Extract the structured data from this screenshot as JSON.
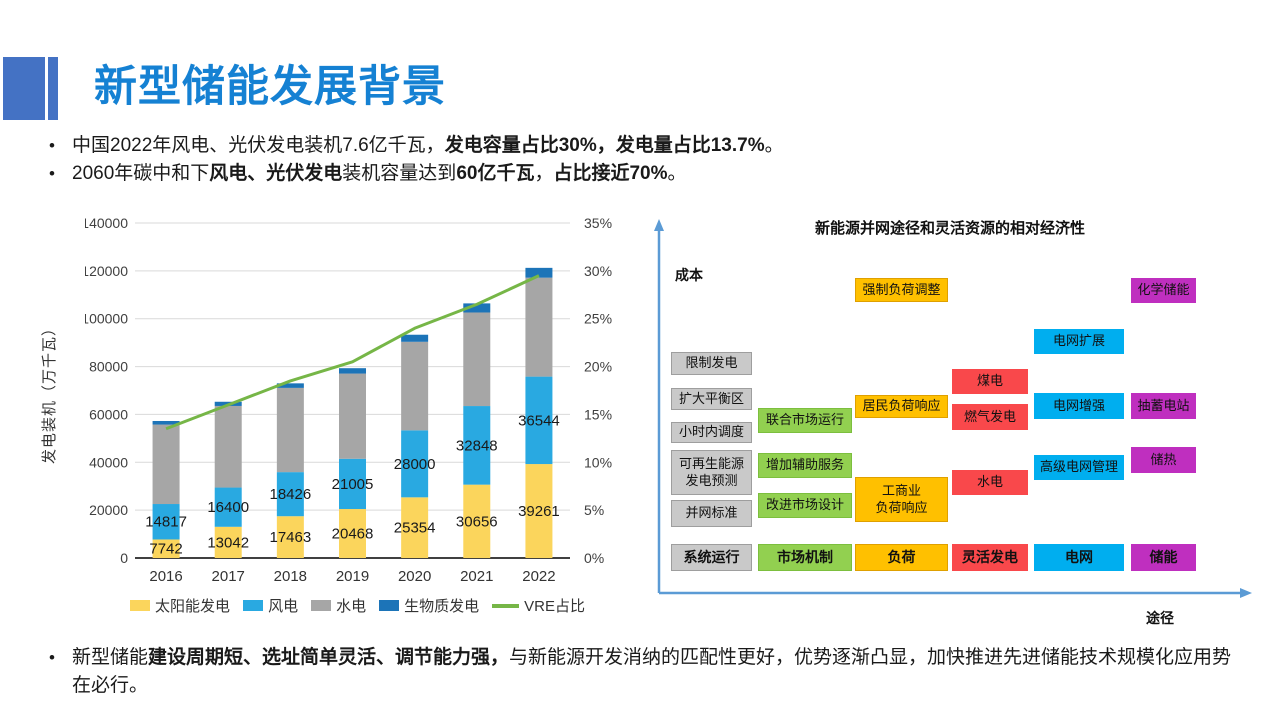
{
  "title": "新型储能发展背景",
  "bullets_top": [
    {
      "segments": [
        {
          "t": "中国2022年风电、光伏发电装机7.6亿千瓦，",
          "b": false
        },
        {
          "t": "发电容量占比30%，发电量占比13.7%",
          "b": true
        },
        {
          "t": "。",
          "b": false
        }
      ]
    },
    {
      "segments": [
        {
          "t": "2060年碳中和下",
          "b": false
        },
        {
          "t": "风电、光伏发电",
          "b": true
        },
        {
          "t": "装机容量达到",
          "b": false
        },
        {
          "t": "60亿千瓦",
          "b": true
        },
        {
          "t": "，",
          "b": false
        },
        {
          "t": "占比接近70%",
          "b": true
        },
        {
          "t": "。",
          "b": false
        }
      ]
    }
  ],
  "bullets_bottom": [
    {
      "segments": [
        {
          "t": "新型储能",
          "b": false
        },
        {
          "t": "建设周期短、选址简单灵活、调节能力强，",
          "b": true
        },
        {
          "t": "与新能源开发消纳的匹配性更好，优势逐渐凸显，加快推进先进储能技术规模化应用势在必行。",
          "b": false
        }
      ]
    }
  ],
  "chart_data": {
    "type": "bar",
    "subtype": "stacked-bar-with-line",
    "categories": [
      "2016",
      "2017",
      "2018",
      "2019",
      "2020",
      "2021",
      "2022"
    ],
    "series": [
      {
        "name": "太阳能发电",
        "color_key": "solar",
        "values": [
          7742,
          13042,
          17463,
          20468,
          25354,
          30656,
          39261
        ]
      },
      {
        "name": "风电",
        "color_key": "wind",
        "values": [
          14817,
          16400,
          18426,
          21005,
          28000,
          32848,
          36544
        ]
      },
      {
        "name": "水电",
        "color_key": "hydro",
        "values": [
          33200,
          34100,
          35200,
          35600,
          37000,
          39100,
          41350
        ]
      },
      {
        "name": "生物质发电",
        "color_key": "biomass",
        "values": [
          1500,
          1750,
          1900,
          2250,
          2950,
          3800,
          4100
        ]
      }
    ],
    "line_series": {
      "name": "VRE占比",
      "color_key": "vre",
      "values": [
        13.5,
        16,
        18.5,
        20.5,
        24,
        26.5,
        29.5
      ]
    },
    "labeled_series": [
      "太阳能发电",
      "风电"
    ],
    "ylabel": "发电装机（万千瓦）",
    "xlabel": "",
    "y_left": {
      "min": 0,
      "max": 140000,
      "step": 20000
    },
    "y_right": {
      "min": 0,
      "max": 35,
      "step": 5,
      "suffix": "%"
    },
    "grid": true,
    "legend_position": "bottom"
  },
  "diagram": {
    "title": "新能源并网途径和灵活资源的相对经济性",
    "y_axis_label": "成本",
    "x_axis_label": "途径",
    "columns": [
      {
        "header": "系统运行",
        "color": "gray",
        "items": [
          "限制发电",
          "扩大平衡区",
          "小时内调度",
          "可再生能源\n发电预测",
          "并网标准"
        ]
      },
      {
        "header": "市场机制",
        "color": "green",
        "items": [
          "联合市场运行",
          "增加辅助服务",
          "改进市场设计"
        ]
      },
      {
        "header": "负荷",
        "color": "yellow",
        "items": [
          "强制负荷调整",
          "居民负荷响应",
          "工商业\n负荷响应"
        ]
      },
      {
        "header": "灵活发电",
        "color": "red",
        "items": [
          "煤电",
          "燃气发电",
          "水电"
        ]
      },
      {
        "header": "电网",
        "color": "blue",
        "items": [
          "电网扩展",
          "电网增强",
          "高级电网管理"
        ]
      },
      {
        "header": "储能",
        "color": "purple",
        "items": [
          "化学储能",
          "抽蓄电站",
          "储热"
        ]
      }
    ]
  },
  "colors": {
    "title_text": "#1581D3",
    "accent_square": "#4472C4",
    "solar": "#FBD55C",
    "wind": "#29A9E1",
    "hydro": "#A6A6A6",
    "biomass": "#1C74B8",
    "vre": "#76B647",
    "box_gray": "#C9C9C9",
    "box_green": "#92D050",
    "box_yellow": "#FFC000",
    "box_red": "#F9484B",
    "box_blue": "#00AEEF",
    "box_purple": "#BF2FBF",
    "axis_arrow": "#5B9BD5",
    "gridline": "#D9D9D9"
  }
}
